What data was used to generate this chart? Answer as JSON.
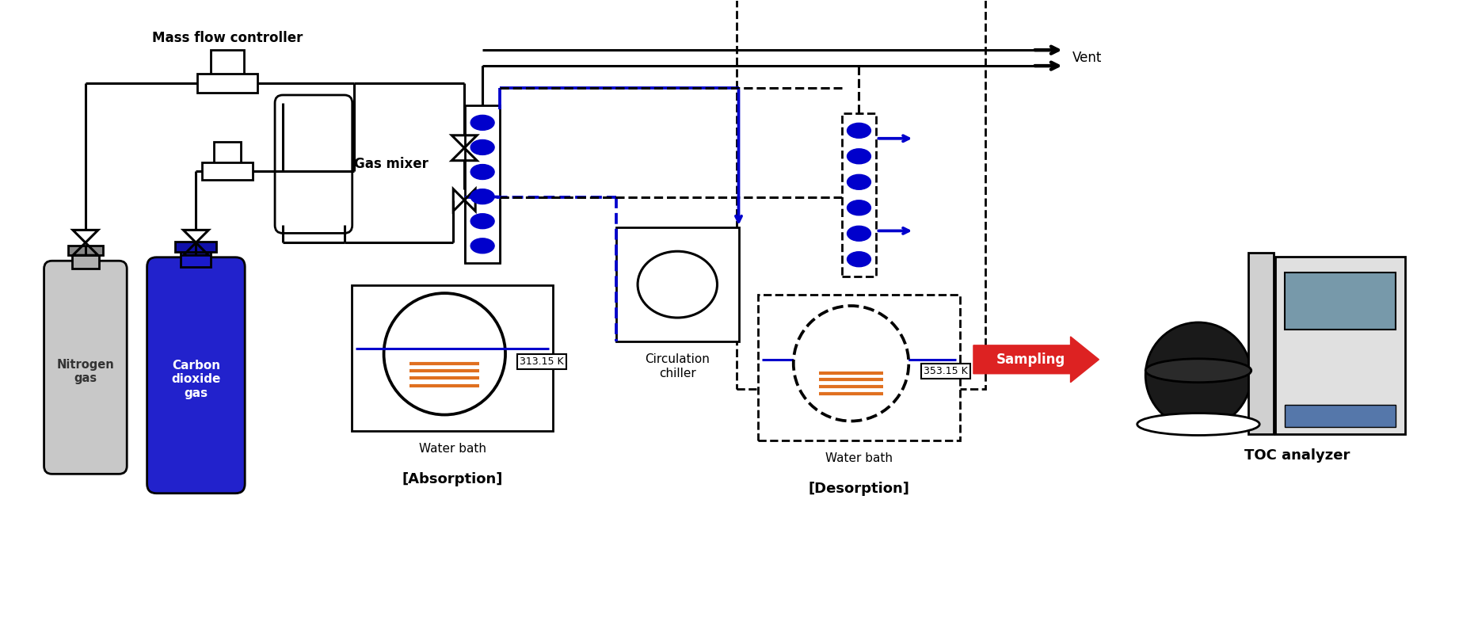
{
  "bg_color": "#ffffff",
  "lc": "#000000",
  "bc": "#0000cc",
  "oc": "#e07020",
  "figsize": [
    18.66,
    7.94
  ],
  "dpi": 100,
  "labels": {
    "mass_flow_controller": "Mass flow controller",
    "gas_mixer": "Gas mixer",
    "nitrogen_gas": "Nitrogen\ngas",
    "co2_gas": "Carbon\ndioxide\ngas",
    "water_bath_abs": "Water bath",
    "absorption": "[Absorption]",
    "circulation_chiller": "Circulation\nchiller",
    "water_bath_des": "Water bath",
    "desorption": "[Desorption]",
    "vent": "Vent",
    "sampling": "Sampling",
    "toc_analyzer": "TOC analyzer",
    "temp_abs": "313.15 K",
    "temp_des": "353.15 K"
  }
}
